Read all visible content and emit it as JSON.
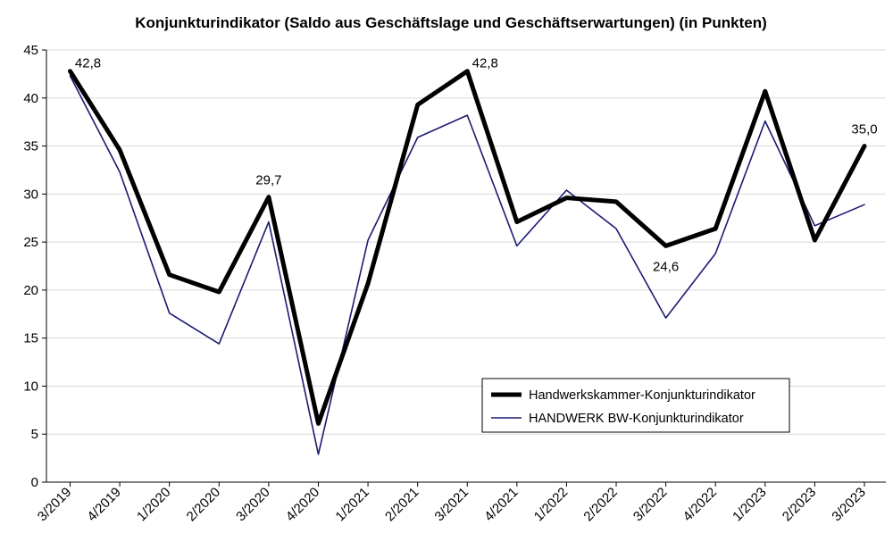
{
  "chart_data": {
    "type": "line",
    "title": "Konjunkturindikator (Saldo aus Geschäftslage und Geschäftserwartungen) (in Punkten)",
    "xlabel": "",
    "ylabel": "",
    "categories": [
      "3/2019",
      "4/2019",
      "1/2020",
      "2/2020",
      "3/2020",
      "4/2020",
      "1/2021",
      "2/2021",
      "3/2021",
      "4/2021",
      "1/2022",
      "2/2022",
      "3/2022",
      "4/2022",
      "1/2023",
      "2/2023",
      "3/2023"
    ],
    "ylim": [
      0,
      45
    ],
    "yticks": [
      0,
      5,
      10,
      15,
      20,
      25,
      30,
      35,
      40,
      45
    ],
    "grid": true,
    "legend_position": "bottom-right",
    "series": [
      {
        "name": "Handwerkskammer-Konjunkturindikator",
        "color": "#000000",
        "values": [
          42.8,
          34.6,
          21.6,
          19.8,
          29.7,
          6.1,
          20.7,
          39.3,
          42.8,
          27.1,
          29.6,
          29.2,
          24.6,
          26.4,
          40.7,
          25.2,
          35.0
        ]
      },
      {
        "name": "HANDWERK BW-Konjunkturindikator",
        "color": "#1a1a72",
        "values": [
          42.3,
          32.3,
          17.6,
          14.4,
          27.1,
          2.9,
          25.2,
          35.9,
          38.2,
          24.6,
          30.4,
          26.4,
          17.1,
          23.8,
          37.6,
          26.7,
          28.9
        ]
      }
    ],
    "data_labels": [
      {
        "index": 0,
        "text": "42,8",
        "placement": "above-right"
      },
      {
        "index": 4,
        "text": "29,7",
        "placement": "above"
      },
      {
        "index": 8,
        "text": "42,8",
        "placement": "above-right"
      },
      {
        "index": 12,
        "text": "24,6",
        "placement": "below"
      },
      {
        "index": 16,
        "text": "35,0",
        "placement": "above"
      }
    ]
  }
}
